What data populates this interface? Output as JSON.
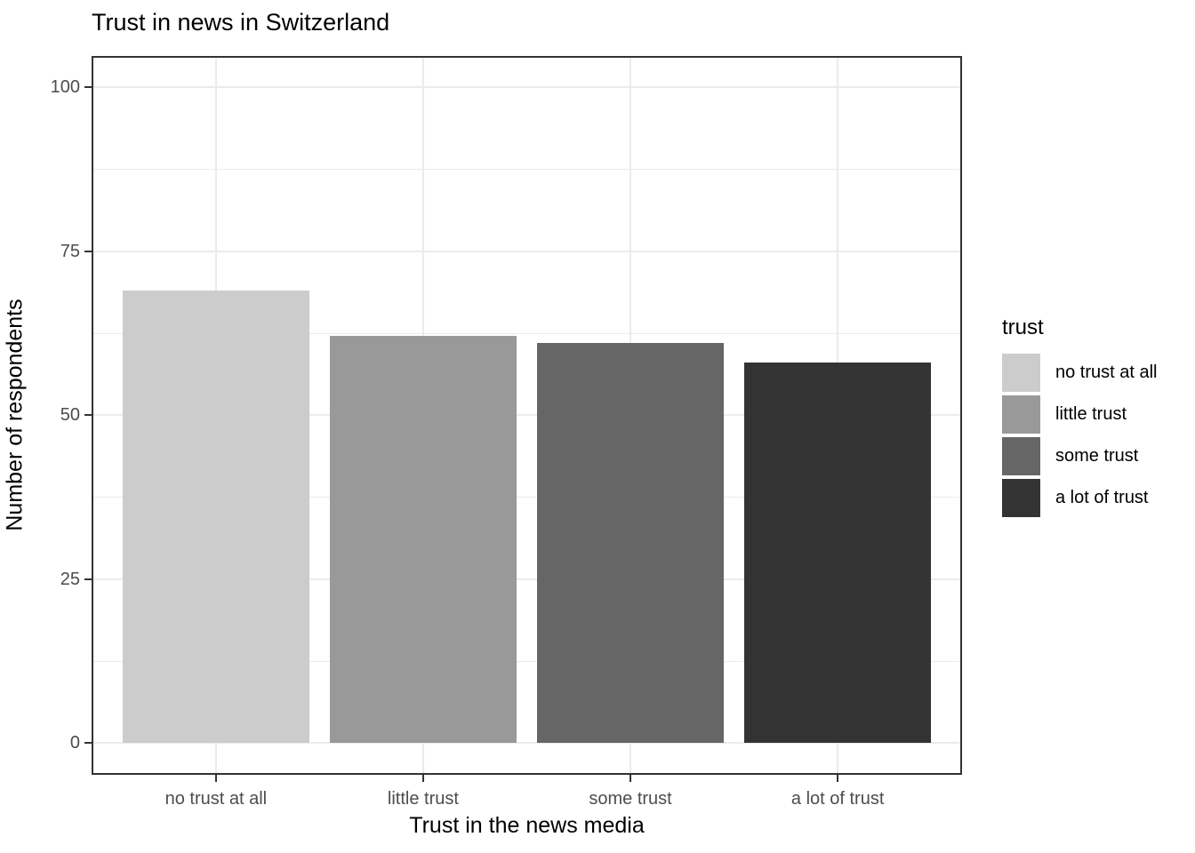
{
  "title": "Trust in news in Switzerland",
  "chart_data": {
    "type": "bar",
    "title": "Trust in news in Switzerland",
    "categories": [
      "no trust at all",
      "little trust",
      "some trust",
      "a lot of trust"
    ],
    "values": [
      69,
      62,
      61,
      58
    ],
    "bar_colors": [
      "#CCCCCC",
      "#999999",
      "#666666",
      "#333333"
    ],
    "xlabel": "Trust in the news media",
    "ylabel": "Number of respondents",
    "ylim": [
      0,
      100
    ],
    "yticks": [
      0,
      25,
      50,
      75,
      100
    ],
    "grid": "major and minor horizontal, major vertical at category centers",
    "legend": {
      "title": "trust",
      "position": "right",
      "entries": [
        {
          "label": "no trust at all",
          "color": "#CCCCCC"
        },
        {
          "label": "little trust",
          "color": "#999999"
        },
        {
          "label": "some trust",
          "color": "#666666"
        },
        {
          "label": "a lot of trust",
          "color": "#333333"
        }
      ]
    }
  },
  "colors": {
    "background": "#FFFFFF",
    "panel_border": "#333333",
    "gridline": "#EBEBEB",
    "tick_label": "#4D4D4D",
    "text": "#000000"
  }
}
